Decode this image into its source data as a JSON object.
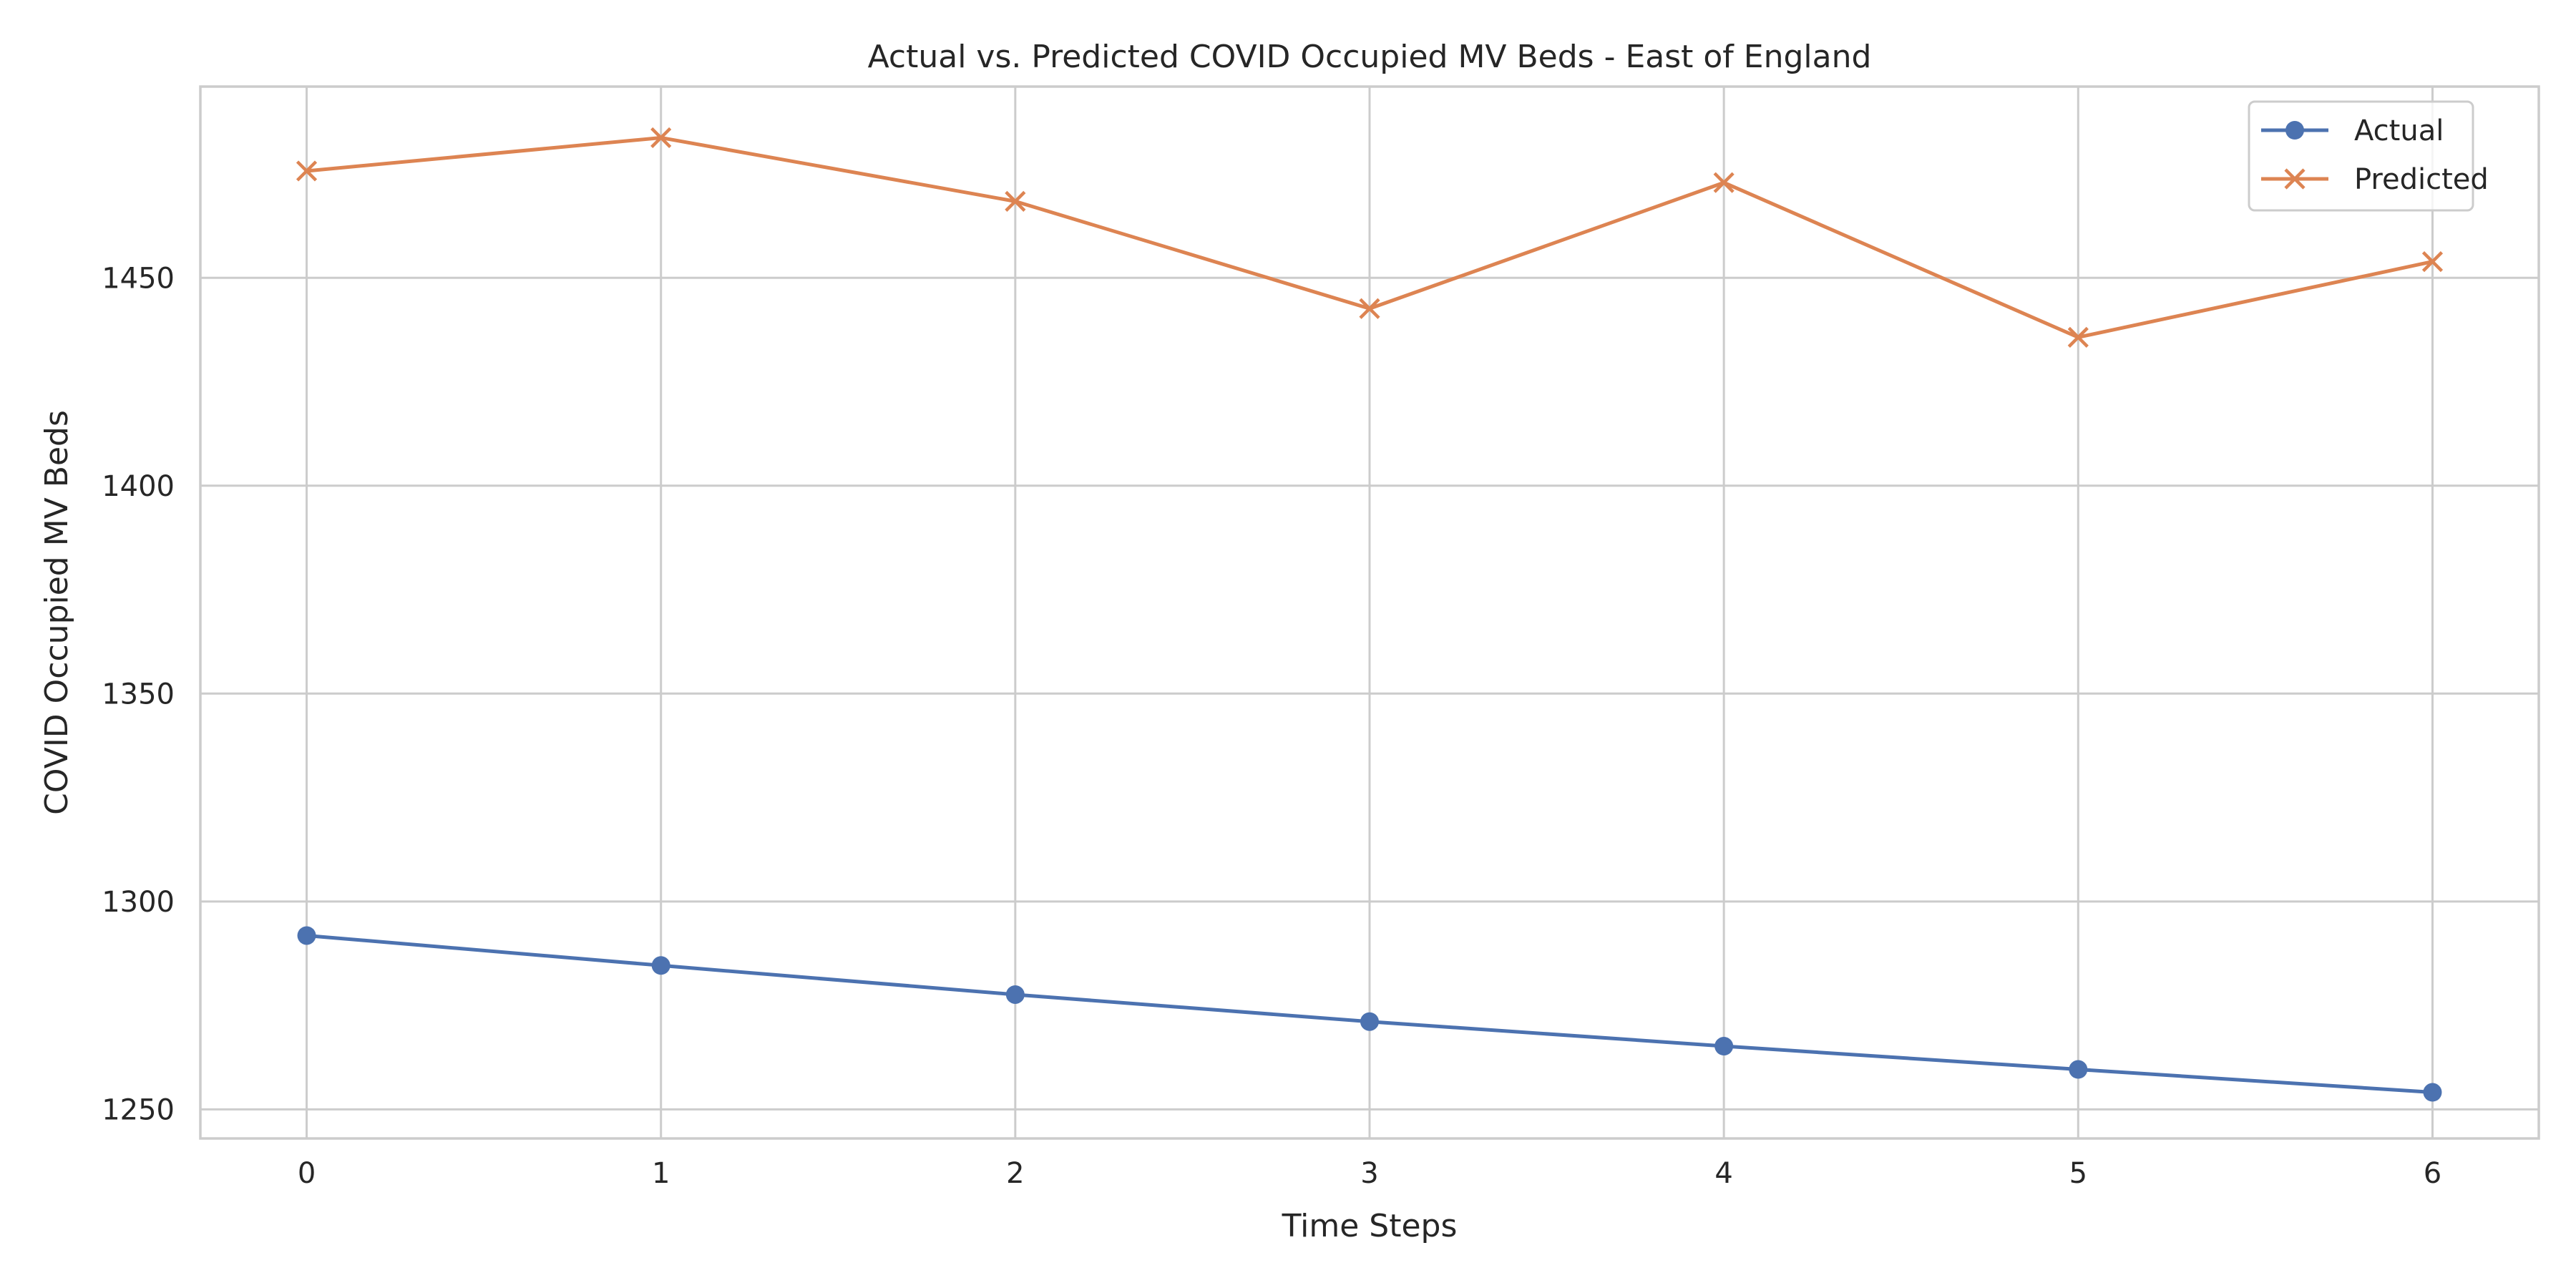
{
  "chart_data": {
    "type": "line",
    "title": "Actual vs. Predicted COVID Occupied MV Beds - East of England",
    "xlabel": "Time Steps",
    "ylabel": "COVID Occupied MV Beds",
    "x": [
      0,
      1,
      2,
      3,
      4,
      5,
      6
    ],
    "xticks": [
      "0",
      "1",
      "2",
      "3",
      "4",
      "5",
      "6"
    ],
    "yticks": [
      1250,
      1300,
      1350,
      1400,
      1450
    ],
    "xlim": [
      -0.3,
      6.3
    ],
    "ylim": [
      1243,
      1496
    ],
    "grid": true,
    "legend_position": "top-right",
    "series": [
      {
        "name": "Actual",
        "marker": "circle",
        "color": "#4c72b0",
        "values": [
          1291.8,
          1284.6,
          1277.6,
          1271.1,
          1265.2,
          1259.6,
          1254.1
        ]
      },
      {
        "name": "Predicted",
        "marker": "x",
        "color": "#dd8452",
        "values": [
          1475.7,
          1483.7,
          1468.4,
          1442.6,
          1472.9,
          1435.7,
          1453.9
        ]
      }
    ]
  }
}
